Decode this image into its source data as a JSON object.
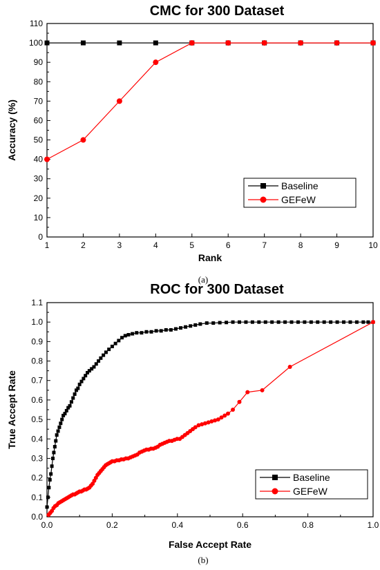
{
  "chart_data": [
    {
      "type": "line",
      "title": "CMC for 300 Dataset",
      "xlabel": "Rank",
      "ylabel": "Accuracy (%)",
      "caption": "(a)",
      "xlim": [
        1,
        10
      ],
      "ylim": [
        0,
        110
      ],
      "xticks": [
        1,
        2,
        3,
        4,
        5,
        6,
        7,
        8,
        9,
        10
      ],
      "yticks": [
        0,
        10,
        20,
        30,
        40,
        50,
        60,
        70,
        80,
        90,
        100,
        110
      ],
      "legend_position": "lower-right",
      "series": [
        {
          "name": "Baseline",
          "color": "#000000",
          "marker": "square",
          "x": [
            1,
            2,
            3,
            4,
            5,
            6,
            7,
            8,
            9,
            10
          ],
          "y": [
            100,
            100,
            100,
            100,
            100,
            100,
            100,
            100,
            100,
            100
          ]
        },
        {
          "name": "GEFeW",
          "color": "#ff0000",
          "marker": "circle",
          "x": [
            1,
            2,
            3,
            4,
            5,
            6,
            7,
            8,
            9,
            10
          ],
          "y": [
            40,
            50,
            70,
            90,
            100,
            100,
            100,
            100,
            100,
            100
          ]
        }
      ]
    },
    {
      "type": "line",
      "title": "ROC for 300 Dataset",
      "xlabel": "False Accept Rate",
      "ylabel": "True Accept Rate",
      "caption": "(b)",
      "xlim": [
        0,
        1
      ],
      "ylim": [
        0,
        1.1
      ],
      "xticks": [
        0.0,
        0.2,
        0.4,
        0.6,
        0.8,
        1.0
      ],
      "yticks": [
        0.0,
        0.1,
        0.2,
        0.3,
        0.4,
        0.5,
        0.6,
        0.7,
        0.8,
        0.9,
        1.0,
        1.1
      ],
      "legend_position": "lower-right",
      "series": [
        {
          "name": "Baseline",
          "color": "#000000",
          "marker": "square",
          "x": [
            0,
            0.003,
            0.006,
            0.009,
            0.012,
            0.015,
            0.018,
            0.021,
            0.024,
            0.027,
            0.03,
            0.034,
            0.038,
            0.042,
            0.046,
            0.05,
            0.055,
            0.06,
            0.065,
            0.07,
            0.075,
            0.08,
            0.085,
            0.09,
            0.095,
            0.1,
            0.106,
            0.112,
            0.118,
            0.124,
            0.13,
            0.137,
            0.144,
            0.151,
            0.158,
            0.165,
            0.173,
            0.181,
            0.19,
            0.2,
            0.21,
            0.22,
            0.23,
            0.24,
            0.25,
            0.262,
            0.275,
            0.29,
            0.305,
            0.32,
            0.335,
            0.35,
            0.365,
            0.38,
            0.395,
            0.41,
            0.425,
            0.44,
            0.455,
            0.47,
            0.49,
            0.51,
            0.53,
            0.55,
            0.57,
            0.59,
            0.61,
            0.63,
            0.65,
            0.67,
            0.69,
            0.71,
            0.73,
            0.75,
            0.77,
            0.79,
            0.81,
            0.83,
            0.85,
            0.87,
            0.89,
            0.91,
            0.93,
            0.95,
            0.97,
            0.985,
            1.0
          ],
          "y": [
            0.05,
            0.1,
            0.15,
            0.19,
            0.22,
            0.26,
            0.3,
            0.33,
            0.36,
            0.39,
            0.42,
            0.44,
            0.46,
            0.48,
            0.5,
            0.52,
            0.53,
            0.545,
            0.56,
            0.57,
            0.59,
            0.61,
            0.63,
            0.65,
            0.66,
            0.68,
            0.695,
            0.71,
            0.725,
            0.74,
            0.75,
            0.76,
            0.77,
            0.785,
            0.8,
            0.815,
            0.83,
            0.845,
            0.86,
            0.875,
            0.89,
            0.905,
            0.92,
            0.93,
            0.935,
            0.94,
            0.945,
            0.945,
            0.95,
            0.95,
            0.955,
            0.955,
            0.96,
            0.96,
            0.965,
            0.97,
            0.975,
            0.98,
            0.985,
            0.99,
            0.995,
            0.995,
            0.997,
            0.998,
            1.0,
            1.0,
            1.0,
            1.0,
            1.0,
            1.0,
            1.0,
            1.0,
            1.0,
            1.0,
            1.0,
            1.0,
            1.0,
            1.0,
            1.0,
            1.0,
            1.0,
            1.0,
            1.0,
            1.0,
            1.0,
            1.0,
            1.0
          ]
        },
        {
          "name": "GEFeW",
          "color": "#ff0000",
          "marker": "circle",
          "x": [
            0.005,
            0.01,
            0.015,
            0.02,
            0.025,
            0.03,
            0.035,
            0.04,
            0.045,
            0.05,
            0.055,
            0.06,
            0.065,
            0.07,
            0.075,
            0.08,
            0.085,
            0.09,
            0.095,
            0.1,
            0.105,
            0.11,
            0.115,
            0.12,
            0.125,
            0.13,
            0.135,
            0.14,
            0.145,
            0.15,
            0.155,
            0.16,
            0.165,
            0.17,
            0.175,
            0.18,
            0.185,
            0.19,
            0.195,
            0.2,
            0.207,
            0.214,
            0.221,
            0.228,
            0.235,
            0.242,
            0.249,
            0.256,
            0.263,
            0.27,
            0.277,
            0.284,
            0.291,
            0.298,
            0.305,
            0.312,
            0.319,
            0.326,
            0.333,
            0.34,
            0.347,
            0.354,
            0.361,
            0.368,
            0.375,
            0.383,
            0.391,
            0.399,
            0.407,
            0.415,
            0.423,
            0.431,
            0.439,
            0.447,
            0.455,
            0.465,
            0.475,
            0.485,
            0.495,
            0.505,
            0.515,
            0.525,
            0.535,
            0.545,
            0.555,
            0.57,
            0.59,
            0.615,
            0.66,
            0.745,
            1.0
          ],
          "y": [
            0.01,
            0.02,
            0.03,
            0.045,
            0.055,
            0.06,
            0.07,
            0.075,
            0.08,
            0.085,
            0.09,
            0.095,
            0.1,
            0.105,
            0.11,
            0.115,
            0.115,
            0.12,
            0.125,
            0.13,
            0.13,
            0.135,
            0.14,
            0.14,
            0.145,
            0.15,
            0.16,
            0.17,
            0.185,
            0.2,
            0.215,
            0.225,
            0.235,
            0.245,
            0.255,
            0.265,
            0.27,
            0.275,
            0.28,
            0.285,
            0.285,
            0.29,
            0.29,
            0.295,
            0.295,
            0.3,
            0.3,
            0.305,
            0.31,
            0.315,
            0.32,
            0.33,
            0.335,
            0.34,
            0.345,
            0.345,
            0.35,
            0.35,
            0.355,
            0.36,
            0.37,
            0.375,
            0.38,
            0.385,
            0.39,
            0.39,
            0.395,
            0.4,
            0.4,
            0.41,
            0.42,
            0.43,
            0.44,
            0.45,
            0.46,
            0.47,
            0.475,
            0.48,
            0.485,
            0.49,
            0.495,
            0.5,
            0.51,
            0.52,
            0.53,
            0.55,
            0.59,
            0.64,
            0.65,
            0.77,
            1.0
          ]
        }
      ]
    }
  ]
}
